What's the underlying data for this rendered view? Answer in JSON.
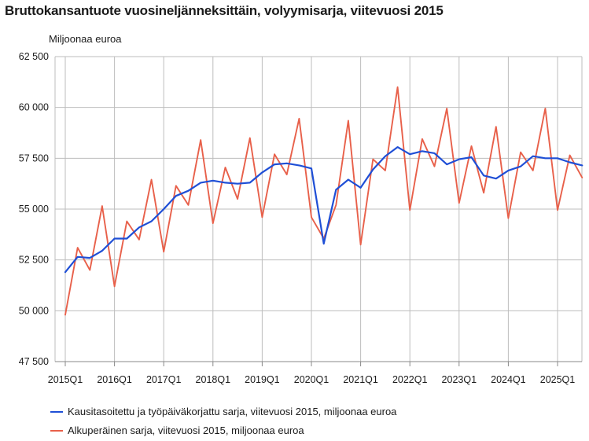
{
  "chart_data": {
    "type": "line",
    "title": "Bruttokansantuote vuosineljänneksittäin, volyymisarja, viitevuosi 2015",
    "ylabel": "Miljoonaa euroa",
    "xlabel": "",
    "ylim": [
      47500,
      62500
    ],
    "yticks": [
      47500,
      50000,
      52500,
      55000,
      57500,
      60000,
      62500
    ],
    "ytick_labels": [
      "47 500",
      "50 000",
      "52 500",
      "55 000",
      "57 500",
      "60 000",
      "62 500"
    ],
    "xtick_labels": [
      "2015Q1",
      "2016Q1",
      "2017Q1",
      "2018Q1",
      "2019Q1",
      "2020Q1",
      "2021Q1",
      "2022Q1",
      "2023Q1",
      "2024Q1",
      "2025Q1"
    ],
    "grid": true,
    "legend_position": "bottom",
    "x": [
      "2015Q1",
      "2015Q2",
      "2015Q3",
      "2015Q4",
      "2016Q1",
      "2016Q2",
      "2016Q3",
      "2016Q4",
      "2017Q1",
      "2017Q2",
      "2017Q3",
      "2017Q4",
      "2018Q1",
      "2018Q2",
      "2018Q3",
      "2018Q4",
      "2019Q1",
      "2019Q2",
      "2019Q3",
      "2019Q4",
      "2020Q1",
      "2020Q2",
      "2020Q3",
      "2020Q4",
      "2021Q1",
      "2021Q2",
      "2021Q3",
      "2021Q4",
      "2022Q1",
      "2022Q2",
      "2022Q3",
      "2022Q4",
      "2023Q1",
      "2023Q2",
      "2023Q3",
      "2023Q4",
      "2024Q1",
      "2024Q2",
      "2024Q3",
      "2024Q4",
      "2025Q1",
      "2025Q2",
      "2025Q3"
    ],
    "series": [
      {
        "name": "Kausitasoitettu ja työpäiväkorjattu sarja, viitevuosi 2015, miljoonaa euroa",
        "color": "#1f4fd6",
        "values": [
          51900,
          52650,
          52600,
          52950,
          53550,
          53550,
          54100,
          54400,
          55000,
          55650,
          55900,
          56300,
          56400,
          56300,
          56250,
          56300,
          56800,
          57200,
          57250,
          57150,
          57000,
          53300,
          55950,
          56450,
          56050,
          56950,
          57600,
          58050,
          57700,
          57850,
          57750,
          57200,
          57450,
          57550,
          56650,
          56500,
          56900,
          57100,
          57600,
          57500,
          57500,
          57300,
          57150
        ]
      },
      {
        "name": "Alkuperäinen sarja, viitevuosi 2015, miljoonaa euroa",
        "color": "#e8604a",
        "values": [
          49800,
          53100,
          52000,
          55150,
          51200,
          54400,
          53500,
          56450,
          52900,
          56150,
          55200,
          58400,
          54300,
          57050,
          55500,
          58500,
          54600,
          57700,
          56700,
          59450,
          54600,
          53550,
          55200,
          59350,
          53250,
          57450,
          56900,
          61000,
          54950,
          58450,
          57100,
          59950,
          55300,
          58100,
          55800,
          59050,
          54550,
          57800,
          56900,
          59950,
          54950,
          57650,
          56550
        ]
      }
    ]
  }
}
